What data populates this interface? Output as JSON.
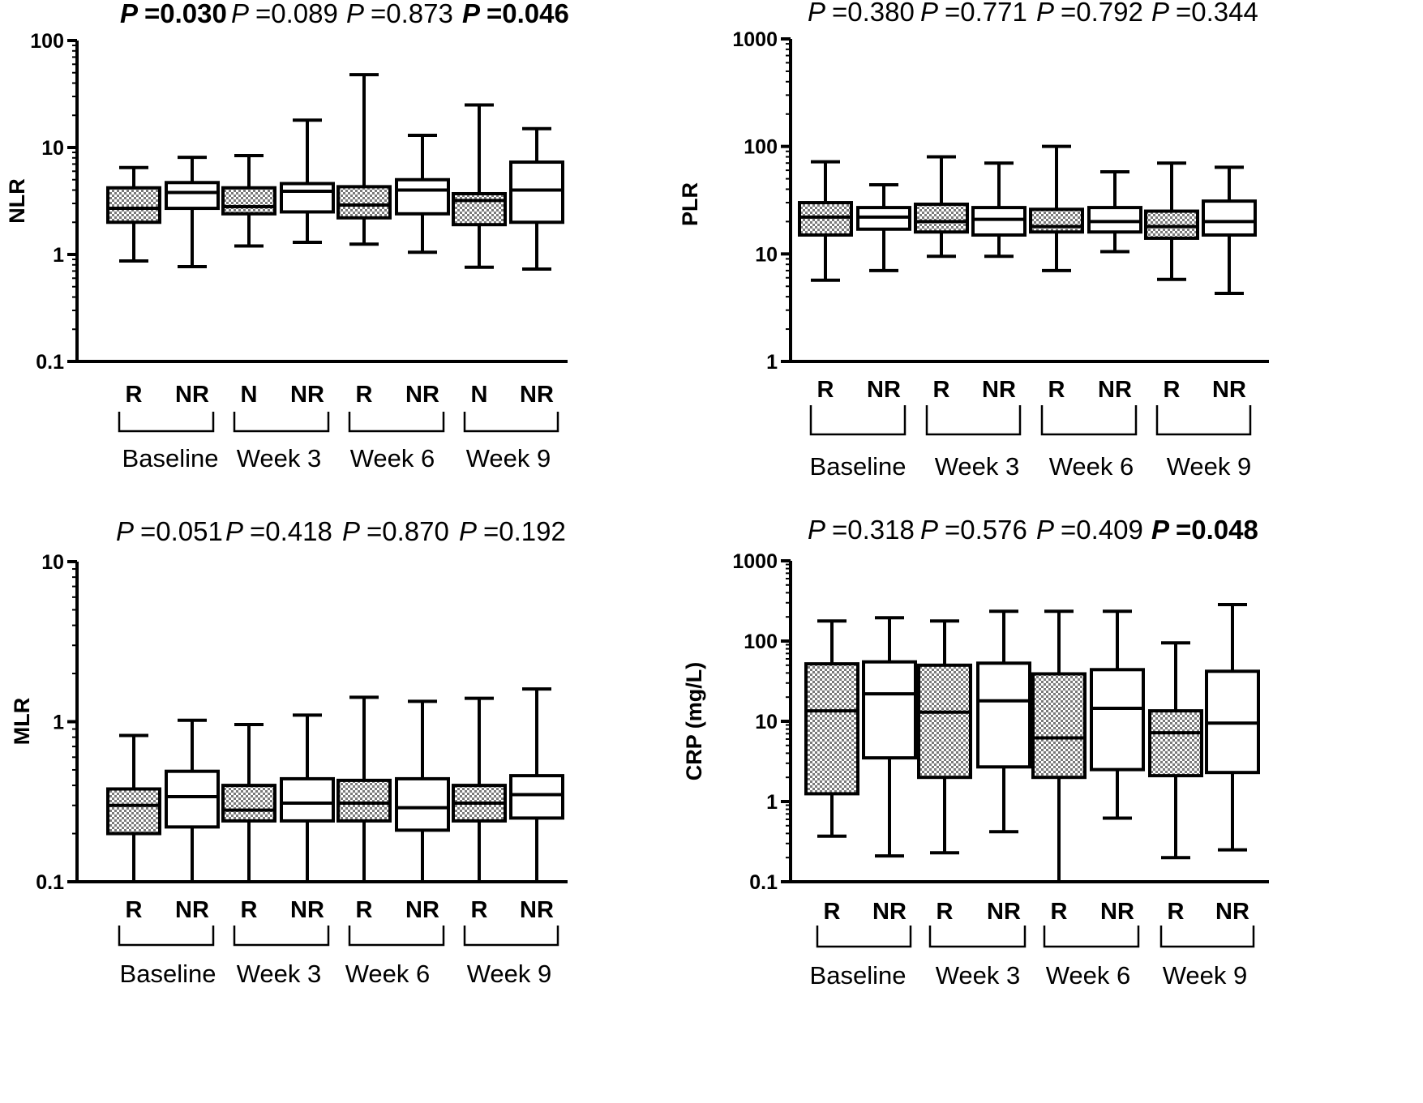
{
  "figure": {
    "colors": {
      "ink": "#000000",
      "responder_fill": "#9a9a9a",
      "nonresponder_fill": "#ffffff"
    },
    "groups": [
      "Baseline",
      "Week 3",
      "Week 6",
      "Week 9"
    ]
  },
  "chart_data": [
    {
      "type": "boxplot",
      "id": "nlr",
      "ylabel": "NLR",
      "yscale": "log",
      "ylim": [
        0.1,
        100
      ],
      "yticks": [
        "0.1",
        "1",
        "10",
        "100"
      ],
      "p_values": [
        {
          "text": "P =0.030",
          "bold": true
        },
        {
          "text": "P =0.089",
          "bold": false
        },
        {
          "text": "P =0.873",
          "bold": false
        },
        {
          "text": "P =0.046",
          "bold": true
        }
      ],
      "boxes": [
        {
          "label": "R",
          "group": "Baseline",
          "fill": "pattern",
          "min": 0.87,
          "q1": 2.0,
          "median": 2.7,
          "q3": 4.2,
          "max": 6.5
        },
        {
          "label": "NR",
          "group": "Baseline",
          "fill": "white",
          "min": 0.77,
          "q1": 2.7,
          "median": 3.8,
          "q3": 4.7,
          "max": 8.1
        },
        {
          "label": "N",
          "group": "Week 3",
          "fill": "pattern",
          "min": 1.2,
          "q1": 2.4,
          "median": 2.8,
          "q3": 4.2,
          "max": 8.4
        },
        {
          "label": "NR",
          "group": "Week 3",
          "fill": "white",
          "min": 1.3,
          "q1": 2.5,
          "median": 3.9,
          "q3": 4.6,
          "max": 18
        },
        {
          "label": "R",
          "group": "Week 6",
          "fill": "pattern",
          "min": 1.25,
          "q1": 2.2,
          "median": 2.9,
          "q3": 4.3,
          "max": 48
        },
        {
          "label": "NR",
          "group": "Week 6",
          "fill": "white",
          "min": 1.05,
          "q1": 2.4,
          "median": 4.0,
          "q3": 5.0,
          "max": 13
        },
        {
          "label": "N",
          "group": "Week 9",
          "fill": "pattern",
          "min": 0.76,
          "q1": 1.9,
          "median": 3.2,
          "q3": 3.7,
          "max": 25
        },
        {
          "label": "NR",
          "group": "Week 9",
          "fill": "white",
          "min": 0.73,
          "q1": 2.0,
          "median": 4.0,
          "q3": 7.3,
          "max": 15
        }
      ]
    },
    {
      "type": "boxplot",
      "id": "plr",
      "ylabel": "PLR",
      "yscale": "log",
      "ylim": [
        1,
        1000
      ],
      "yticks": [
        "1",
        "10",
        "100",
        "1000"
      ],
      "p_values": [
        {
          "text": "P =0.380",
          "bold": false
        },
        {
          "text": "P =0.771",
          "bold": false
        },
        {
          "text": "P =0.792",
          "bold": false
        },
        {
          "text": "P =0.344",
          "bold": false
        }
      ],
      "boxes": [
        {
          "label": "R",
          "group": "Baseline",
          "fill": "pattern",
          "min": 5.7,
          "q1": 15,
          "median": 22,
          "q3": 30,
          "max": 72
        },
        {
          "label": "NR",
          "group": "Baseline",
          "fill": "white",
          "min": 7.0,
          "q1": 17,
          "median": 22,
          "q3": 27,
          "max": 44
        },
        {
          "label": "R",
          "group": "Week 3",
          "fill": "pattern",
          "min": 9.5,
          "q1": 16,
          "median": 20,
          "q3": 29,
          "max": 80
        },
        {
          "label": "NR",
          "group": "Week 3",
          "fill": "white",
          "min": 9.5,
          "q1": 15,
          "median": 21,
          "q3": 27,
          "max": 70
        },
        {
          "label": "R",
          "group": "Week 6",
          "fill": "pattern",
          "min": 7.0,
          "q1": 16,
          "median": 18,
          "q3": 26,
          "max": 100
        },
        {
          "label": "NR",
          "group": "Week 6",
          "fill": "white",
          "min": 10.5,
          "q1": 16,
          "median": 20,
          "q3": 27,
          "max": 58
        },
        {
          "label": "R",
          "group": "Week 9",
          "fill": "pattern",
          "min": 5.8,
          "q1": 14,
          "median": 18,
          "q3": 25,
          "max": 70
        },
        {
          "label": "NR",
          "group": "Week 9",
          "fill": "white",
          "min": 4.3,
          "q1": 15,
          "median": 20,
          "q3": 31,
          "max": 64
        }
      ]
    },
    {
      "type": "boxplot",
      "id": "mlr",
      "ylabel": "MLR",
      "yscale": "log",
      "ylim": [
        0.1,
        10
      ],
      "yticks": [
        "0.1",
        "1",
        "10"
      ],
      "p_values": [
        {
          "text": "P =0.051",
          "bold": false
        },
        {
          "text": "P =0.418",
          "bold": false
        },
        {
          "text": "P =0.870",
          "bold": false
        },
        {
          "text": "P =0.192",
          "bold": false
        }
      ],
      "boxes": [
        {
          "label": "R",
          "group": "Baseline",
          "fill": "pattern",
          "min": 0.1,
          "q1": 0.2,
          "median": 0.3,
          "q3": 0.38,
          "max": 0.82
        },
        {
          "label": "NR",
          "group": "Baseline",
          "fill": "white",
          "min": 0.1,
          "q1": 0.22,
          "median": 0.34,
          "q3": 0.49,
          "max": 1.02
        },
        {
          "label": "R",
          "group": "Week 3",
          "fill": "pattern",
          "min": 0.1,
          "q1": 0.24,
          "median": 0.28,
          "q3": 0.4,
          "max": 0.96
        },
        {
          "label": "NR",
          "group": "Week 3",
          "fill": "white",
          "min": 0.1,
          "q1": 0.24,
          "median": 0.31,
          "q3": 0.44,
          "max": 1.1
        },
        {
          "label": "R",
          "group": "Week 6",
          "fill": "pattern",
          "min": 0.1,
          "q1": 0.24,
          "median": 0.31,
          "q3": 0.43,
          "max": 1.42
        },
        {
          "label": "NR",
          "group": "Week 6",
          "fill": "white",
          "min": 0.1,
          "q1": 0.21,
          "median": 0.29,
          "q3": 0.44,
          "max": 1.34
        },
        {
          "label": "R",
          "group": "Week 9",
          "fill": "pattern",
          "min": 0.1,
          "q1": 0.24,
          "median": 0.31,
          "q3": 0.4,
          "max": 1.4
        },
        {
          "label": "NR",
          "group": "Week 9",
          "fill": "white",
          "min": 0.1,
          "q1": 0.25,
          "median": 0.35,
          "q3": 0.46,
          "max": 1.6
        }
      ]
    },
    {
      "type": "boxplot",
      "id": "crp",
      "ylabel": "CRP (mg/L)",
      "yscale": "log",
      "ylim": [
        0.1,
        1000
      ],
      "yticks": [
        "0.1",
        "1",
        "10",
        "100",
        "1000"
      ],
      "p_values": [
        {
          "text": "P =0.318",
          "bold": false
        },
        {
          "text": "P =0.576",
          "bold": false
        },
        {
          "text": "P =0.409",
          "bold": false
        },
        {
          "text": "P =0.048",
          "bold": true
        }
      ],
      "boxes": [
        {
          "label": "R",
          "group": "Baseline",
          "fill": "pattern",
          "min": 0.37,
          "q1": 1.25,
          "median": 13.5,
          "q3": 52,
          "max": 178
        },
        {
          "label": "NR",
          "group": "Baseline",
          "fill": "white",
          "min": 0.21,
          "q1": 3.5,
          "median": 22,
          "q3": 55,
          "max": 195
        },
        {
          "label": "R",
          "group": "Week 3",
          "fill": "pattern",
          "min": 0.23,
          "q1": 2.0,
          "median": 13,
          "q3": 50,
          "max": 178
        },
        {
          "label": "NR",
          "group": "Week 3",
          "fill": "white",
          "min": 0.42,
          "q1": 2.7,
          "median": 18,
          "q3": 53,
          "max": 235
        },
        {
          "label": "R",
          "group": "Week 6",
          "fill": "pattern",
          "min": 0.1,
          "q1": 2.0,
          "median": 6.2,
          "q3": 39,
          "max": 235
        },
        {
          "label": "NR",
          "group": "Week 6",
          "fill": "white",
          "min": 0.62,
          "q1": 2.5,
          "median": 14.5,
          "q3": 44,
          "max": 235
        },
        {
          "label": "R",
          "group": "Week 9",
          "fill": "pattern",
          "min": 0.2,
          "q1": 2.1,
          "median": 7.2,
          "q3": 13.5,
          "max": 95
        },
        {
          "label": "NR",
          "group": "Week 9",
          "fill": "white",
          "min": 0.25,
          "q1": 2.3,
          "median": 9.5,
          "q3": 42,
          "max": 285
        }
      ]
    }
  ]
}
